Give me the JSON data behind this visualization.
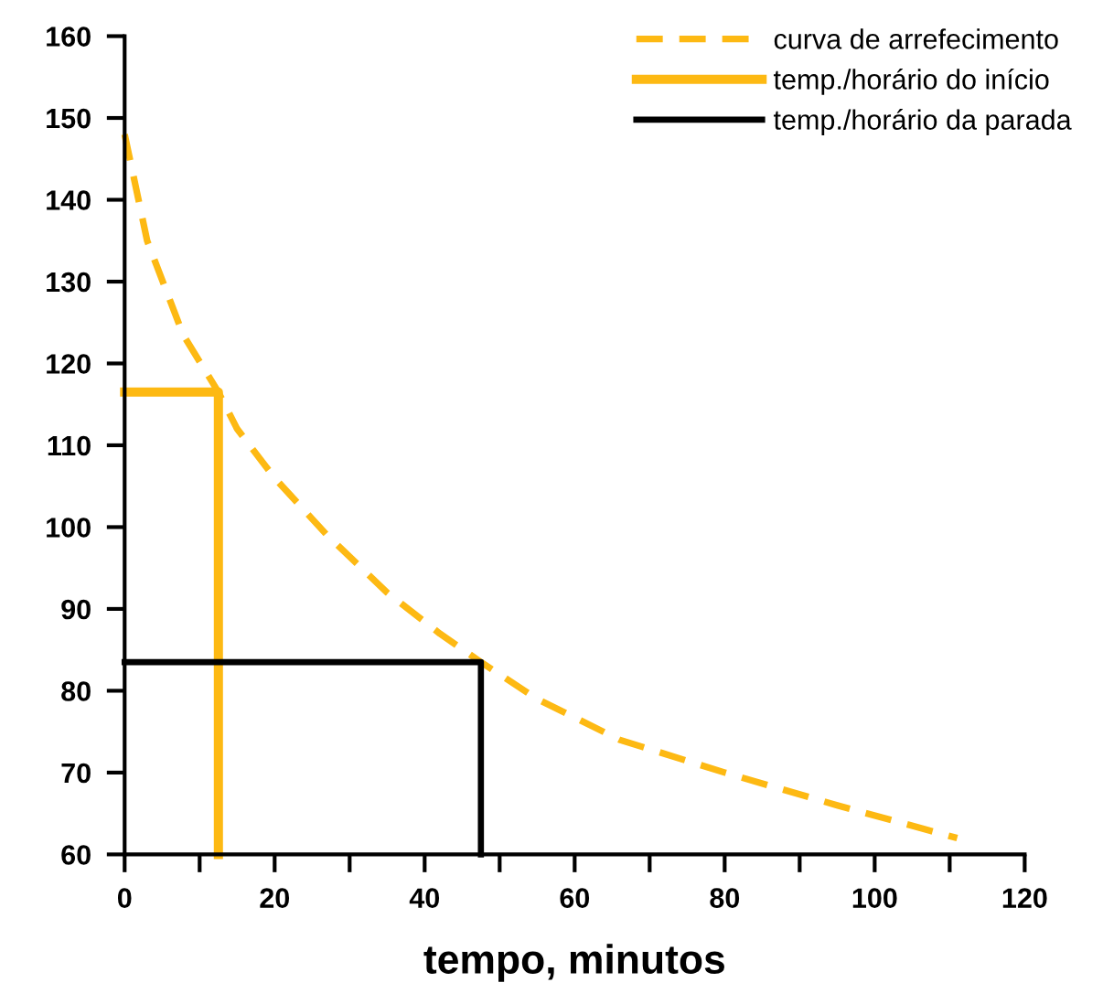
{
  "chart_data": {
    "type": "line",
    "xlabel": "tempo, minutos",
    "xlim": [
      0,
      120
    ],
    "ylim": [
      60,
      160
    ],
    "xticks": [
      0,
      {
        "value": 10,
        "label": null
      },
      20,
      {
        "value": 30,
        "label": null
      },
      40,
      {
        "value": 50,
        "label": null
      },
      60,
      {
        "value": 70,
        "label": null
      },
      80,
      {
        "value": 90,
        "label": null
      },
      100,
      {
        "value": 110,
        "label": null
      },
      120
    ],
    "yticks": [
      60,
      70,
      80,
      90,
      100,
      110,
      120,
      130,
      140,
      150,
      160
    ],
    "grid": false,
    "legend": "top right",
    "marker": "none",
    "series": [
      {
        "name": "curva de arrefecimento",
        "color": "#fdb913",
        "line_style": "dashed",
        "x": [
          0,
          3,
          7.8,
          12.5,
          15,
          20,
          27,
          35,
          42,
          47.5,
          55,
          66,
          80,
          95,
          111
        ],
        "values": [
          148,
          135,
          123.5,
          116.5,
          112,
          106,
          99,
          92,
          87,
          83.5,
          79,
          74,
          70,
          66,
          62
        ]
      },
      {
        "name": "temp./horário do início",
        "color": "#fdb913",
        "line_style": "solid",
        "x": [
          0,
          12.5,
          12.5
        ],
        "values": [
          116.5,
          116.5,
          60
        ]
      },
      {
        "name": "temp./horário da parada",
        "color": "#000000",
        "line_style": "solid",
        "x": [
          0,
          47.5,
          47.5
        ],
        "values": [
          83.5,
          83.5,
          60
        ]
      }
    ]
  }
}
